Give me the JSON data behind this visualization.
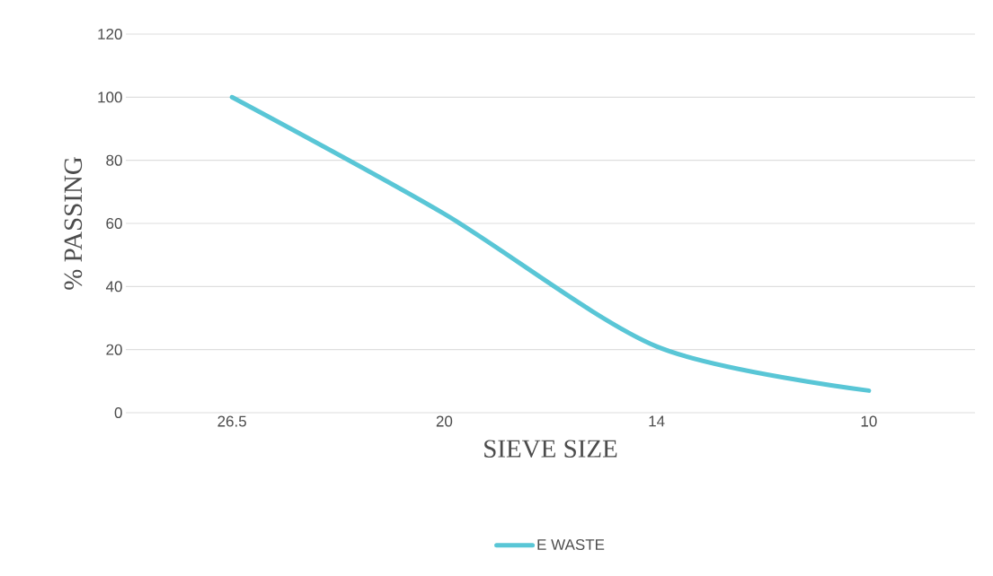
{
  "chart_data": {
    "type": "line",
    "xlabel": "SIEVE SIZE",
    "ylabel": "% PASSING",
    "categories": [
      "26.5",
      "20",
      "14",
      "10"
    ],
    "series": [
      {
        "name": "E WASTE",
        "color": "#59c6d6",
        "values": [
          100,
          63,
          21,
          7
        ]
      }
    ],
    "ylim": [
      0,
      120
    ],
    "yticks": [
      0,
      20,
      40,
      60,
      80,
      100,
      120
    ],
    "grid": "y",
    "legend": "bottom"
  }
}
